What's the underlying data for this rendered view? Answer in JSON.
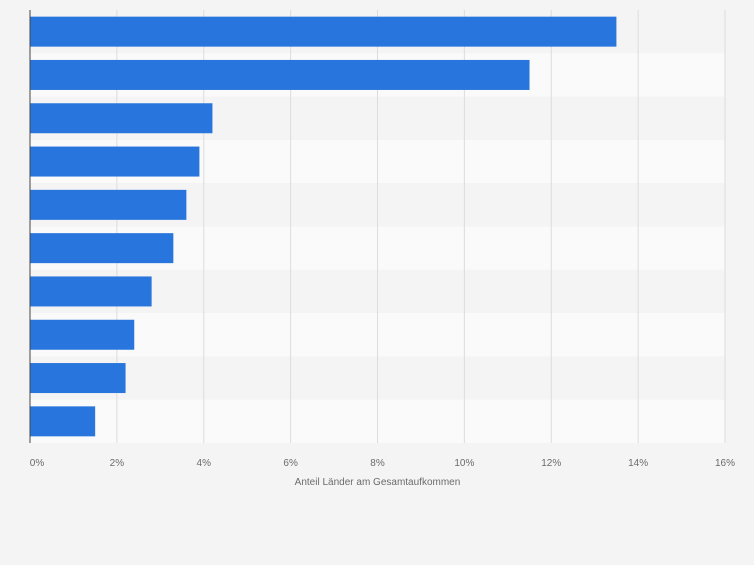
{
  "chart_data": {
    "type": "bar",
    "orientation": "horizontal",
    "categories": [
      "",
      "",
      "",
      "",
      "",
      "",
      "",
      "",
      "",
      ""
    ],
    "values": [
      13.5,
      11.5,
      4.2,
      3.9,
      3.6,
      3.3,
      2.8,
      2.4,
      2.2,
      1.5
    ],
    "title": "",
    "xlabel": "Anteil Länder am Gesamtaufkommen",
    "ylabel": "",
    "xlim": [
      0,
      16
    ],
    "xticks": [
      0,
      2,
      4,
      6,
      8,
      10,
      12,
      14,
      16
    ],
    "xtick_labels": [
      "0%",
      "2%",
      "4%",
      "6%",
      "8%",
      "10%",
      "12%",
      "14%",
      "16%"
    ],
    "grid": true,
    "legend": "none"
  },
  "colors": {
    "bar": "#2876dd",
    "page_background": "#f4f4f4",
    "band_odd": "#f4f4f4",
    "band_even": "#fafafa",
    "gridline": "#dcdcdc",
    "axis": "#444444",
    "tick_text": "#6b6b6b"
  }
}
